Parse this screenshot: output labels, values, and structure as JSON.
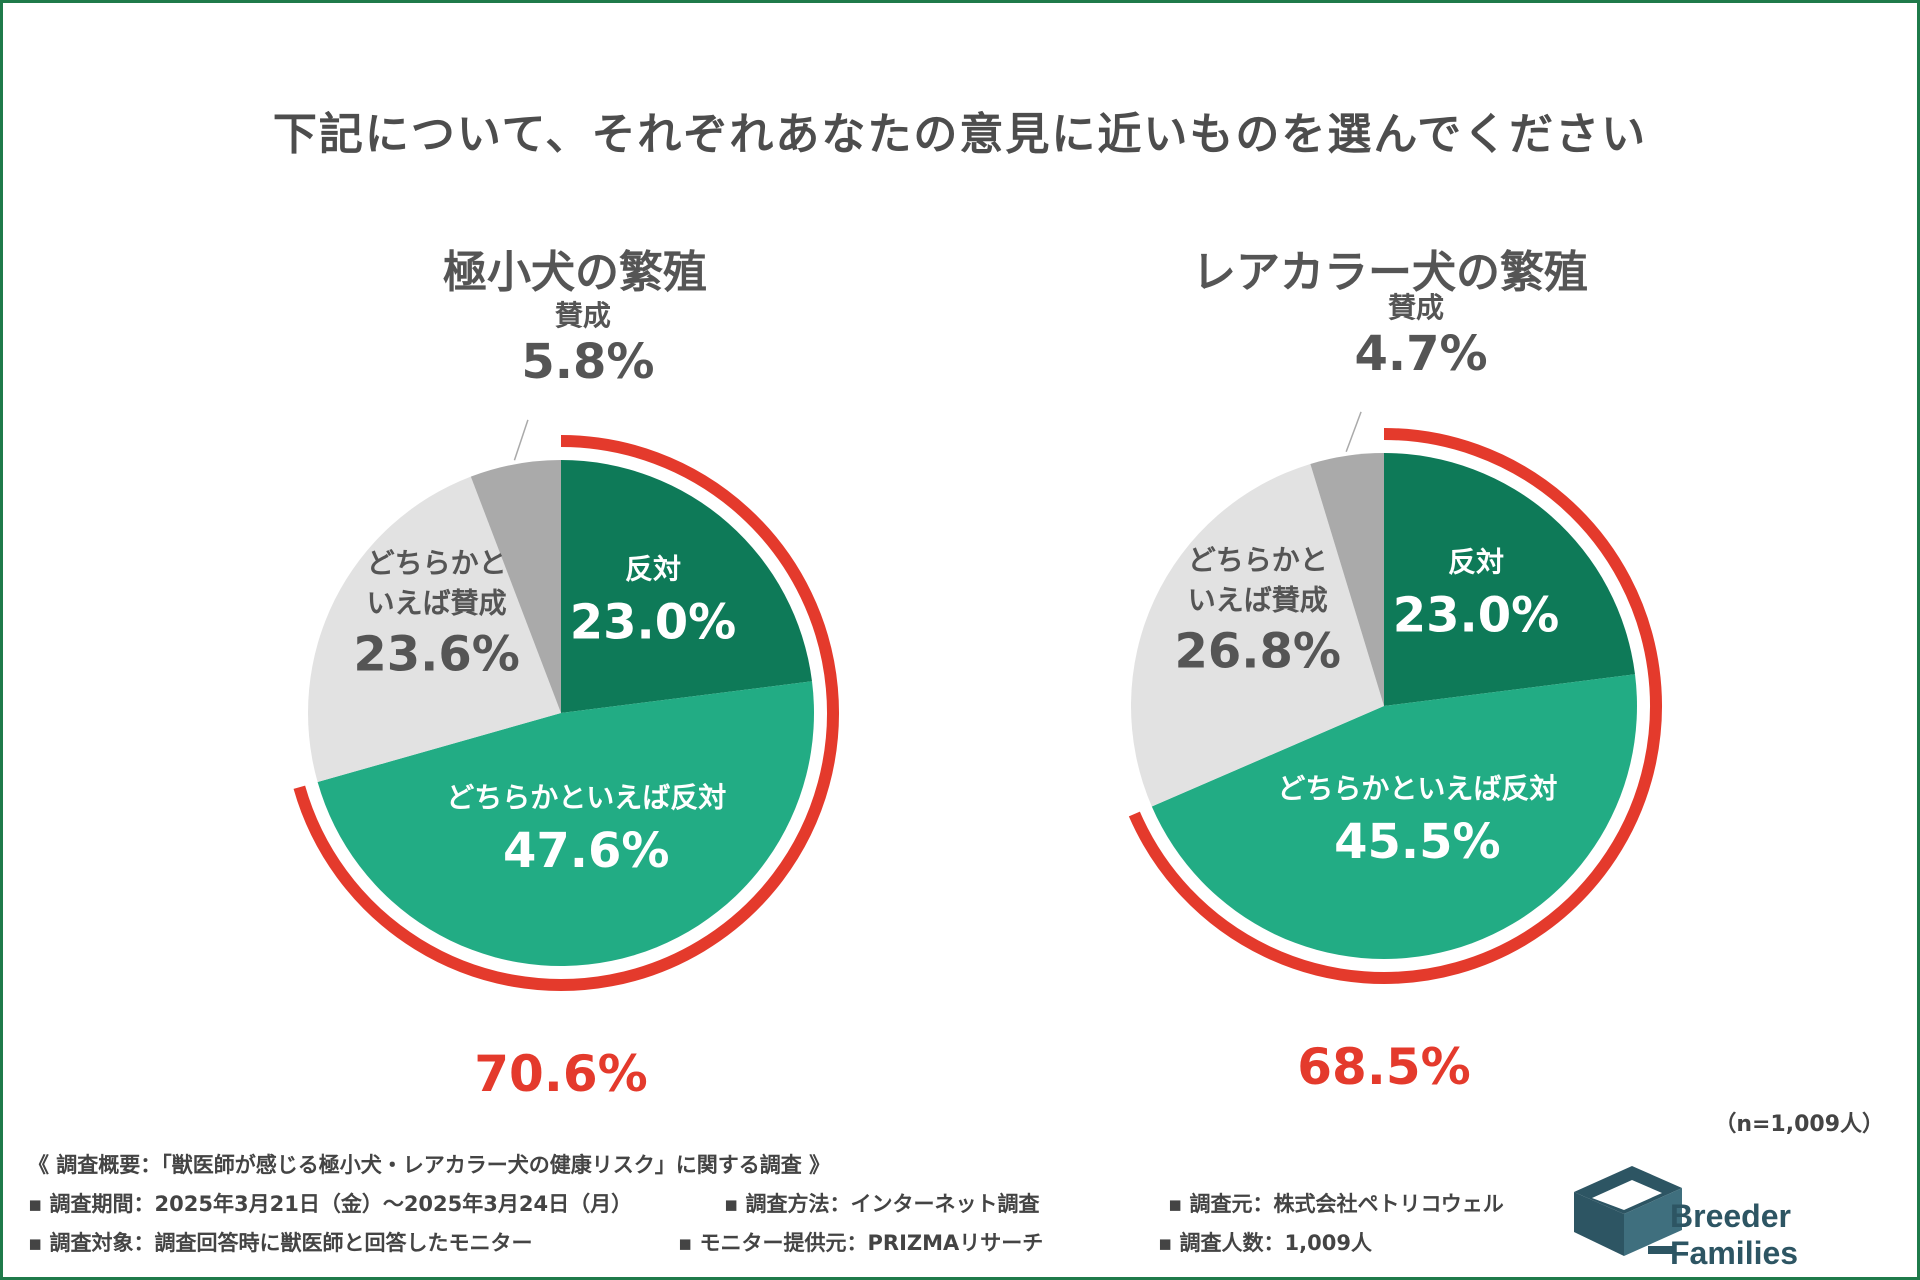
{
  "title": "下記について、それぞれあなたの意見に近いものを選んでください",
  "colors": {
    "oppose": "#0e7a58",
    "somewhat_oppose": "#22ac84",
    "somewhat_agree": "#e2e2e2",
    "agree": "#aaaaaa",
    "highlight": "#e43a2c",
    "frame": "#1f7a4a"
  },
  "chart_data": [
    {
      "type": "pie",
      "title": "極小犬の繁殖",
      "slices": [
        {
          "label": "反対",
          "value": 23.0,
          "display": "23.0%"
        },
        {
          "label": "どちらかといえば反対",
          "value": 47.6,
          "display": "47.6%"
        },
        {
          "label_line1": "どちらかと",
          "label_line2": "いえば賛成",
          "label": "どちらかといえば賛成",
          "value": 23.6,
          "display": "23.6%"
        },
        {
          "label": "賛成",
          "value": 5.8,
          "display": "5.8%"
        }
      ],
      "highlight_total": "70.6%",
      "highlight_value": 70.6
    },
    {
      "type": "pie",
      "title": "レアカラー犬の繁殖",
      "slices": [
        {
          "label": "反対",
          "value": 23.0,
          "display": "23.0%"
        },
        {
          "label": "どちらかといえば反対",
          "value": 45.5,
          "display": "45.5%"
        },
        {
          "label_line1": "どちらかと",
          "label_line2": "いえば賛成",
          "label": "どちらかといえば賛成",
          "value": 26.8,
          "display": "26.8%"
        },
        {
          "label": "賛成",
          "value": 4.7,
          "display": "4.7%"
        }
      ],
      "highlight_total": "68.5%",
      "highlight_value": 68.5
    }
  ],
  "footer": {
    "n": "（n=1,009人）",
    "overview": "《 調査概要：「獣医師が感じる極小犬・レアカラー犬の健康リスク」に関する調査 》",
    "period": "▪ 調査期間：2025年3月21日（金）〜2025年3月24日（月）",
    "method": "▪ 調査方法：インターネット調査",
    "source": "▪ 調査元：株式会社ペトリコウェル",
    "target": "▪ 調査対象：調査回答時に獣医師と回答したモニター",
    "provider": "▪ モニター提供元：PRIZMAリサーチ",
    "count": "▪ 調査人数：1,009人"
  },
  "logo": {
    "text": "Breeder Families",
    "icon": "cube-logo-icon"
  }
}
